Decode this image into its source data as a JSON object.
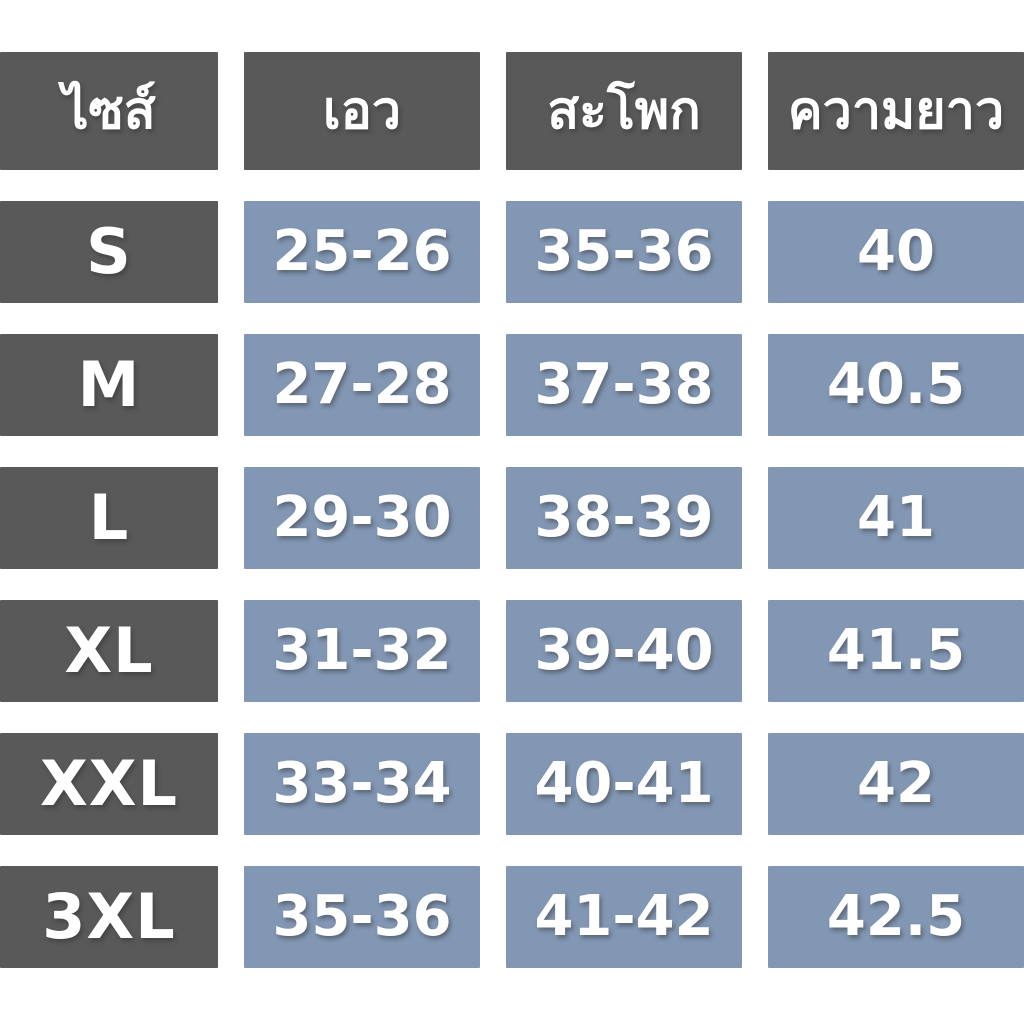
{
  "colors": {
    "header_bg": "#595959",
    "size_column_bg": "#595959",
    "value_bg": "#8297b4",
    "text": "#ffffff",
    "page_bg": "#ffffff"
  },
  "table": {
    "headers": [
      {
        "id": "size",
        "label": "ไซส์"
      },
      {
        "id": "waist",
        "label": "เอว"
      },
      {
        "id": "hips",
        "label": "สะโพก"
      },
      {
        "id": "length",
        "label": "ความยาว"
      }
    ],
    "rows": [
      {
        "size": "S",
        "waist": "25-26",
        "hips": "35-36",
        "length": "40"
      },
      {
        "size": "M",
        "waist": "27-28",
        "hips": "37-38",
        "length": "40.5"
      },
      {
        "size": "L",
        "waist": "29-30",
        "hips": "38-39",
        "length": "41"
      },
      {
        "size": "XL",
        "waist": "31-32",
        "hips": "39-40",
        "length": "41.5"
      },
      {
        "size": "XXL",
        "waist": "33-34",
        "hips": "40-41",
        "length": "42"
      },
      {
        "size": "3XL",
        "waist": "35-36",
        "hips": "41-42",
        "length": "42.5"
      }
    ]
  },
  "chart_data": {
    "type": "table",
    "columns": [
      "ไซส์",
      "เอว",
      "สะโพก",
      "ความยาว"
    ],
    "rows": [
      [
        "S",
        "25-26",
        "35-36",
        "40"
      ],
      [
        "M",
        "27-28",
        "37-38",
        "40.5"
      ],
      [
        "L",
        "29-30",
        "38-39",
        "41"
      ],
      [
        "XL",
        "31-32",
        "39-40",
        "41.5"
      ],
      [
        "XXL",
        "33-34",
        "40-41",
        "42"
      ],
      [
        "3XL",
        "35-36",
        "41-42",
        "42.5"
      ]
    ]
  }
}
